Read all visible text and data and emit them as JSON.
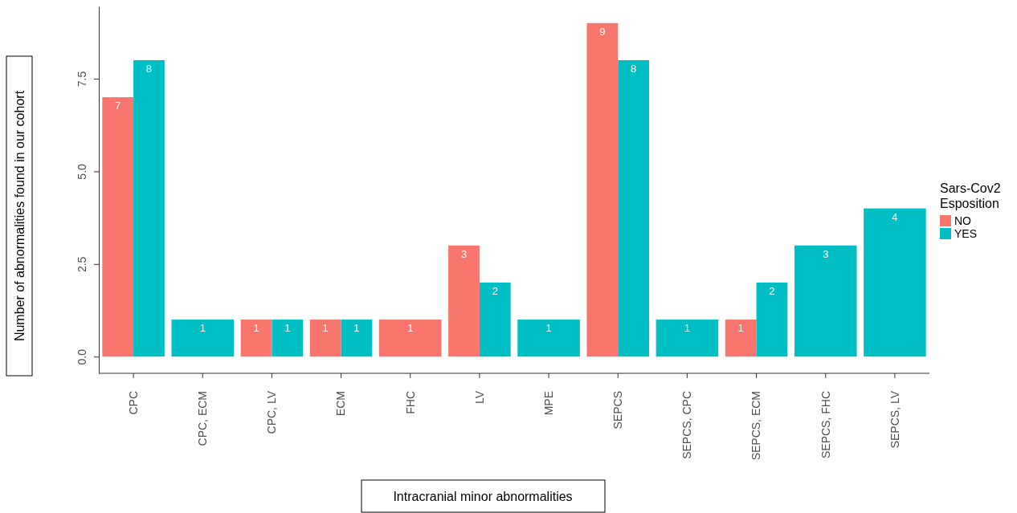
{
  "chart_data": {
    "type": "bar",
    "xlabel": "Intracranial minor abnormalities",
    "ylabel": "Number of abnormalities found in our cohort",
    "legend_title": "Sars-Cov2\nEsposition",
    "categories": [
      "CPC",
      "CPC, ECM",
      "CPC, LV",
      "ECM",
      "FHC",
      "LV",
      "MPE",
      "SEPCS",
      "SEPCS, CPC",
      "SEPCS, ECM",
      "SEPCS, FHC",
      "SEPCS, LV"
    ],
    "series": [
      {
        "name": "NO",
        "color": "#f8766d",
        "values": [
          7,
          null,
          1,
          1,
          1,
          3,
          null,
          9,
          null,
          1,
          null,
          null
        ]
      },
      {
        "name": "YES",
        "color": "#00bfc4",
        "values": [
          8,
          1,
          1,
          1,
          null,
          2,
          1,
          8,
          1,
          2,
          3,
          4
        ]
      }
    ],
    "ylim": [
      -0.45,
      9.45
    ],
    "yticks": [
      {
        "value": 0,
        "label": "0.0"
      },
      2.5,
      {
        "value": 5,
        "label": "5.0"
      },
      7.5
    ],
    "data_labels": true,
    "legend": "right",
    "grid": false
  }
}
